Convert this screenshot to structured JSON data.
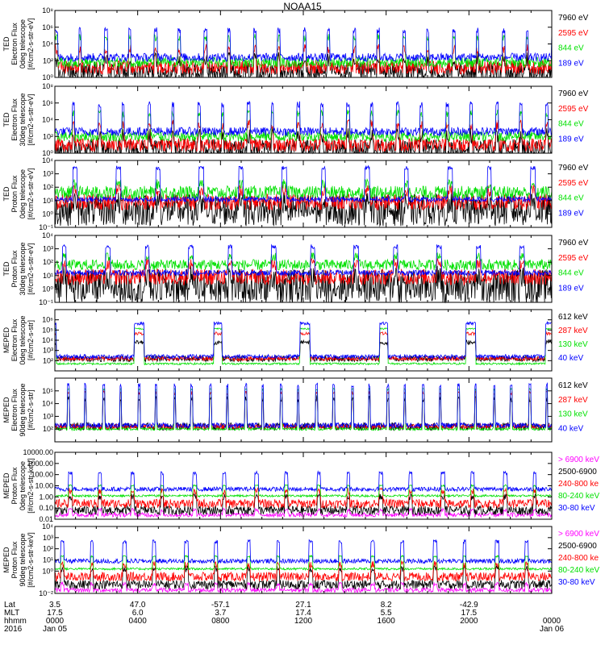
{
  "title": "NOAA15",
  "colors": {
    "black": "#000000",
    "red": "#ff0000",
    "green": "#00e000",
    "blue": "#0000ff",
    "magenta": "#ff00ff"
  },
  "chart_data": [
    {
      "type": "line",
      "ylabel": [
        "TED",
        "Electron Flux",
        "0deg telescope",
        "[#/cm2-s-str-eV]"
      ],
      "scale": "log",
      "ylim_exp": [
        0,
        8
      ],
      "yticks": [
        {
          "e": 0,
          "t": "10⁰"
        },
        {
          "e": 2,
          "t": "10²"
        },
        {
          "e": 4,
          "t": "10⁴"
        },
        {
          "e": 6,
          "t": "10⁶"
        },
        {
          "e": 8,
          "t": "10⁸"
        }
      ],
      "series": [
        {
          "name": "7960 eV",
          "color": "#000000",
          "base": 0.6,
          "peak": 3.0,
          "noise": 1.2,
          "burst": 10
        },
        {
          "name": "2595 eV",
          "color": "#ff0000",
          "base": 1.2,
          "peak": 4.0,
          "noise": 0.8,
          "burst": 10
        },
        {
          "name": "844 eV",
          "color": "#00e000",
          "base": 1.8,
          "peak": 5.2,
          "noise": 0.6,
          "burst": 10
        },
        {
          "name": "189 eV",
          "color": "#0000ff",
          "base": 2.4,
          "peak": 6.0,
          "noise": 0.5,
          "burst": 10
        }
      ]
    },
    {
      "type": "line",
      "ylabel": [
        "TED",
        "Electron Flux",
        "30deg telescope",
        "[#/cm2-s-str-eV]"
      ],
      "scale": "log",
      "ylim_exp": [
        0,
        8
      ],
      "yticks": [
        {
          "e": 0,
          "t": "10⁰"
        },
        {
          "e": 2,
          "t": "10²"
        },
        {
          "e": 4,
          "t": "10⁴"
        },
        {
          "e": 6,
          "t": "10⁶"
        },
        {
          "e": 8,
          "t": "10⁸"
        }
      ],
      "series": [
        {
          "name": "7960 eV",
          "color": "#000000",
          "base": 0.5,
          "peak": 3.0,
          "noise": 1.2,
          "burst": 10
        },
        {
          "name": "2595 eV",
          "color": "#ff0000",
          "base": 1.0,
          "peak": 4.0,
          "noise": 0.8,
          "burst": 10
        },
        {
          "name": "844 eV",
          "color": "#00e000",
          "base": 2.0,
          "peak": 5.2,
          "noise": 0.6,
          "burst": 10
        },
        {
          "name": "189 eV",
          "color": "#0000ff",
          "base": 2.6,
          "peak": 6.2,
          "noise": 0.5,
          "burst": 10
        }
      ]
    },
    {
      "type": "line",
      "ylabel": [
        "TED",
        "Proton Flux",
        "0deg telescope",
        "[#/cm2-s-str-eV]"
      ],
      "scale": "log",
      "ylim_exp": [
        -1,
        4
      ],
      "yticks": [
        {
          "e": -1,
          "t": "10⁻¹"
        },
        {
          "e": 0,
          "t": "10⁰"
        },
        {
          "e": 1,
          "t": "10¹"
        },
        {
          "e": 2,
          "t": "10²"
        },
        {
          "e": 3,
          "t": "10³"
        },
        {
          "e": 4,
          "t": "10⁴"
        }
      ],
      "series": [
        {
          "name": "7960 eV",
          "color": "#000000",
          "base": 0.3,
          "peak": 1.8,
          "noise": 1.2,
          "burst": 6
        },
        {
          "name": "2595 eV",
          "color": "#ff0000",
          "base": 0.9,
          "peak": 2.2,
          "noise": 0.6,
          "burst": 6
        },
        {
          "name": "844 eV",
          "color": "#00e000",
          "base": 1.6,
          "peak": 2.6,
          "noise": 0.5,
          "burst": 6
        },
        {
          "name": "189 eV",
          "color": "#0000ff",
          "base": 1.1,
          "peak": 3.6,
          "noise": 0.2,
          "burst": 6
        }
      ]
    },
    {
      "type": "line",
      "ylabel": [
        "TED",
        "Proton Flux",
        "30deg telescope",
        "[#/cm2-s-str-eV]"
      ],
      "scale": "log",
      "ylim_exp": [
        -1,
        4
      ],
      "yticks": [
        {
          "e": -1,
          "t": "10⁻¹"
        },
        {
          "e": 0,
          "t": "10⁰"
        },
        {
          "e": 1,
          "t": "10¹"
        },
        {
          "e": 2,
          "t": "10²"
        },
        {
          "e": 3,
          "t": "10³"
        },
        {
          "e": 4,
          "t": "10⁴"
        }
      ],
      "series": [
        {
          "name": "7960 eV",
          "color": "#000000",
          "base": 0.2,
          "peak": 1.8,
          "noise": 1.3,
          "burst": 6
        },
        {
          "name": "2595 eV",
          "color": "#ff0000",
          "base": 0.9,
          "peak": 2.3,
          "noise": 0.6,
          "burst": 6
        },
        {
          "name": "844 eV",
          "color": "#00e000",
          "base": 1.8,
          "peak": 2.7,
          "noise": 0.4,
          "burst": 6
        },
        {
          "name": "189 eV",
          "color": "#0000ff",
          "base": 1.2,
          "peak": 3.3,
          "noise": 0.2,
          "burst": 6
        }
      ]
    },
    {
      "type": "line",
      "ylabel": [
        "MEPED",
        "Electron Flux",
        "0deg telescope",
        "[#/cm2-s-str]"
      ],
      "scale": "log",
      "ylim_exp": [
        1,
        7
      ],
      "yticks": [
        {
          "e": 2,
          "t": "10²"
        },
        {
          "e": 3,
          "t": "10³"
        },
        {
          "e": 4,
          "t": "10⁴"
        },
        {
          "e": 5,
          "t": "10⁵"
        },
        {
          "e": 6,
          "t": "10⁶"
        }
      ],
      "series": [
        {
          "name": "612 keV",
          "color": "#000000",
          "base": 2.2,
          "peak": 4.0,
          "noise": 0.3,
          "burst": 3
        },
        {
          "name": "287 keV",
          "color": "#ff0000",
          "base": 2.2,
          "peak": 4.8,
          "noise": 0.2,
          "burst": 3
        },
        {
          "name": "130 keV",
          "color": "#00e000",
          "base": 1.7,
          "peak": 5.2,
          "noise": 0.1,
          "burst": 3
        },
        {
          "name": "40 keV",
          "color": "#0000ff",
          "base": 2.4,
          "peak": 5.8,
          "noise": 0.2,
          "burst": 3
        }
      ]
    },
    {
      "type": "line",
      "ylabel": [
        "MEPED",
        "Electron Flux",
        "90deg telescope",
        "[#/cm2-s-str]"
      ],
      "scale": "log",
      "ylim_exp": [
        1,
        6
      ],
      "yticks": [
        {
          "e": 2,
          "t": "10²"
        },
        {
          "e": 3,
          "t": "10³"
        },
        {
          "e": 4,
          "t": "10⁴"
        },
        {
          "e": 5,
          "t": "10⁵"
        }
      ],
      "series": [
        {
          "name": "612 keV",
          "color": "#000000",
          "base": 2.2,
          "peak": 4.6,
          "noise": 0.3,
          "burst": 14
        },
        {
          "name": "287 keV",
          "color": "#ff0000",
          "base": 2.2,
          "peak": 5.0,
          "noise": 0.2,
          "burst": 14
        },
        {
          "name": "130 keV",
          "color": "#00e000",
          "base": 2.0,
          "peak": 5.2,
          "noise": 0.1,
          "burst": 14
        },
        {
          "name": "40 keV",
          "color": "#0000ff",
          "base": 2.3,
          "peak": 5.6,
          "noise": 0.2,
          "burst": 14
        }
      ]
    },
    {
      "type": "line",
      "ylabel": [
        "MEPED",
        "Proton Flux",
        "0deg telescope",
        "[#/cm2-s-str-keV]"
      ],
      "scale": "log",
      "ylim_exp": [
        -2,
        4
      ],
      "yticks": [
        {
          "e": -2,
          "t": "0.01"
        },
        {
          "e": -1,
          "t": "0.10"
        },
        {
          "e": 0,
          "t": "1.00"
        },
        {
          "e": 1,
          "t": "10.00"
        },
        {
          "e": 2,
          "t": "100.00"
        },
        {
          "e": 3,
          "t": "1000.00"
        },
        {
          "e": 4,
          "t": "10000.00"
        }
      ],
      "series": [
        {
          "name": "> 6900 keV",
          "color": "#ff00ff",
          "base": -1.6,
          "peak": -1.0,
          "noise": 0.2,
          "burst": 8
        },
        {
          "name": "2500-6900",
          "color": "#000000",
          "base": -1.2,
          "peak": 0.3,
          "noise": 0.4,
          "burst": 8
        },
        {
          "name": "240-800 ke",
          "color": "#ff0000",
          "base": -0.6,
          "peak": 0.8,
          "noise": 0.4,
          "burst": 8
        },
        {
          "name": "80-240 keV",
          "color": "#00e000",
          "base": 0.1,
          "peak": 1.1,
          "noise": 0.1,
          "burst": 8
        },
        {
          "name": "30-80 keV",
          "color": "#0000ff",
          "base": 0.7,
          "peak": 2.3,
          "noise": 0.2,
          "burst": 8
        }
      ]
    },
    {
      "type": "line",
      "ylabel": [
        "MEPED",
        "Proton Flux",
        "90deg telescope",
        "[#/cm2-s-str-keV]"
      ],
      "scale": "log",
      "ylim_exp": [
        -2,
        4
      ],
      "yticks": [
        {
          "e": -2,
          "t": "10⁻²"
        },
        {
          "e": 0,
          "t": "10⁰"
        },
        {
          "e": 1,
          "t": "10¹"
        },
        {
          "e": 2,
          "t": "10²"
        },
        {
          "e": 3,
          "t": "10³"
        },
        {
          "e": 4,
          "t": "10⁴"
        }
      ],
      "series": [
        {
          "name": "> 6900 keV",
          "color": "#ff00ff",
          "base": -1.7,
          "peak": -1.0,
          "noise": 0.2,
          "burst": 8
        },
        {
          "name": "2500-6900",
          "color": "#000000",
          "base": -1.2,
          "peak": 0.5,
          "noise": 0.4,
          "burst": 8
        },
        {
          "name": "240-800 ke",
          "color": "#ff0000",
          "base": -0.5,
          "peak": 0.9,
          "noise": 0.4,
          "burst": 8
        },
        {
          "name": "80-240 keV",
          "color": "#00e000",
          "base": 0.2,
          "peak": 1.4,
          "noise": 0.1,
          "burst": 8
        },
        {
          "name": "30-80 keV",
          "color": "#0000ff",
          "base": 0.9,
          "peak": 2.8,
          "noise": 0.2,
          "burst": 8
        }
      ]
    }
  ],
  "x_axis": {
    "row_labels": [
      "Lat",
      "MLT",
      "hhmm",
      "2016"
    ],
    "columns": [
      {
        "lat": "3.5",
        "mlt": "17.5",
        "hhmm": "0000",
        "date": "Jan 05"
      },
      {
        "lat": "47.0",
        "mlt": "6.0",
        "hhmm": "0400",
        "date": ""
      },
      {
        "lat": "-57.1",
        "mlt": "3.7",
        "hhmm": "0800",
        "date": ""
      },
      {
        "lat": "27.1",
        "mlt": "17.4",
        "hhmm": "1200",
        "date": ""
      },
      {
        "lat": "8.2",
        "mlt": "5.5",
        "hhmm": "1600",
        "date": ""
      },
      {
        "lat": "-42.9",
        "mlt": "17.5",
        "hhmm": "2000",
        "date": ""
      },
      {
        "lat": "",
        "mlt": "",
        "hhmm": "0000",
        "date": "Jan 06"
      }
    ],
    "range_hours": [
      0,
      24
    ]
  }
}
